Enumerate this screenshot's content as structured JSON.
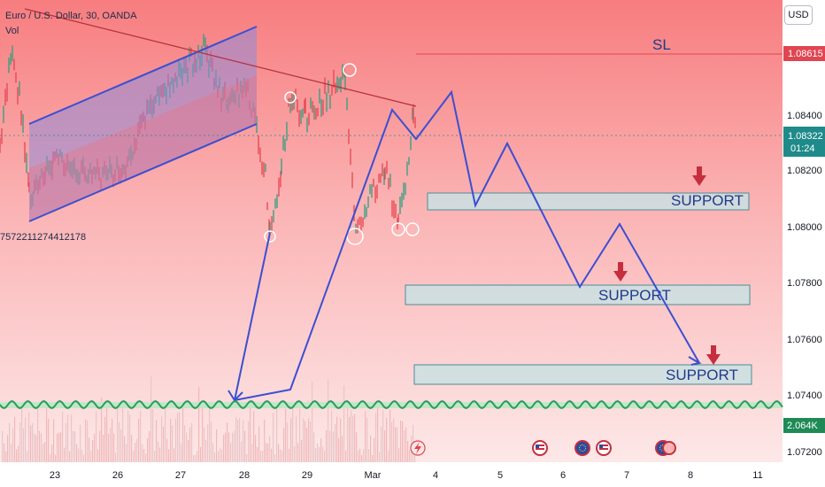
{
  "header": {
    "symbol_line": "Euro / U.S. Dollar, 30, OANDA",
    "indicator": "Vol",
    "left_number": "7572211274412178"
  },
  "currency_button": "USD",
  "price_axis": {
    "ticks": [
      "1.08400",
      "1.08200",
      "1.08000",
      "1.07800",
      "1.07600",
      "1.07400",
      "1.07200"
    ],
    "sl_price": "1.08615",
    "current_price": "1.08322",
    "countdown": "01:24",
    "volume_label": "2.064K"
  },
  "time_axis": {
    "labels": [
      "23",
      "26",
      "27",
      "28",
      "29",
      "Mar",
      "4",
      "5",
      "6",
      "7",
      "8",
      "11"
    ]
  },
  "annotations": {
    "sl_label": "SL",
    "support_1": "SUPPORT",
    "support_2": "SUPPORT",
    "support_3": "SUPPORT"
  },
  "colors": {
    "bg_top": "#f77d7f",
    "bg_bottom": "#fde6e6",
    "sl_line": "#e04552",
    "current_price": "#1f8a8a",
    "channel_fill": "#8f8ad8",
    "drawing_line": "#3b4fd1",
    "support_fill": "#c9e1e3",
    "arrow": "#c62e3d",
    "volume_bar": "#f2b8ba",
    "sine_wave": "#2e9a5b"
  },
  "icons": [
    "lightning-event-icon",
    "us-flag-event-icon",
    "eu-flag-event-icon",
    "us-flag-event-icon",
    "eu-flag-event-icon"
  ]
}
